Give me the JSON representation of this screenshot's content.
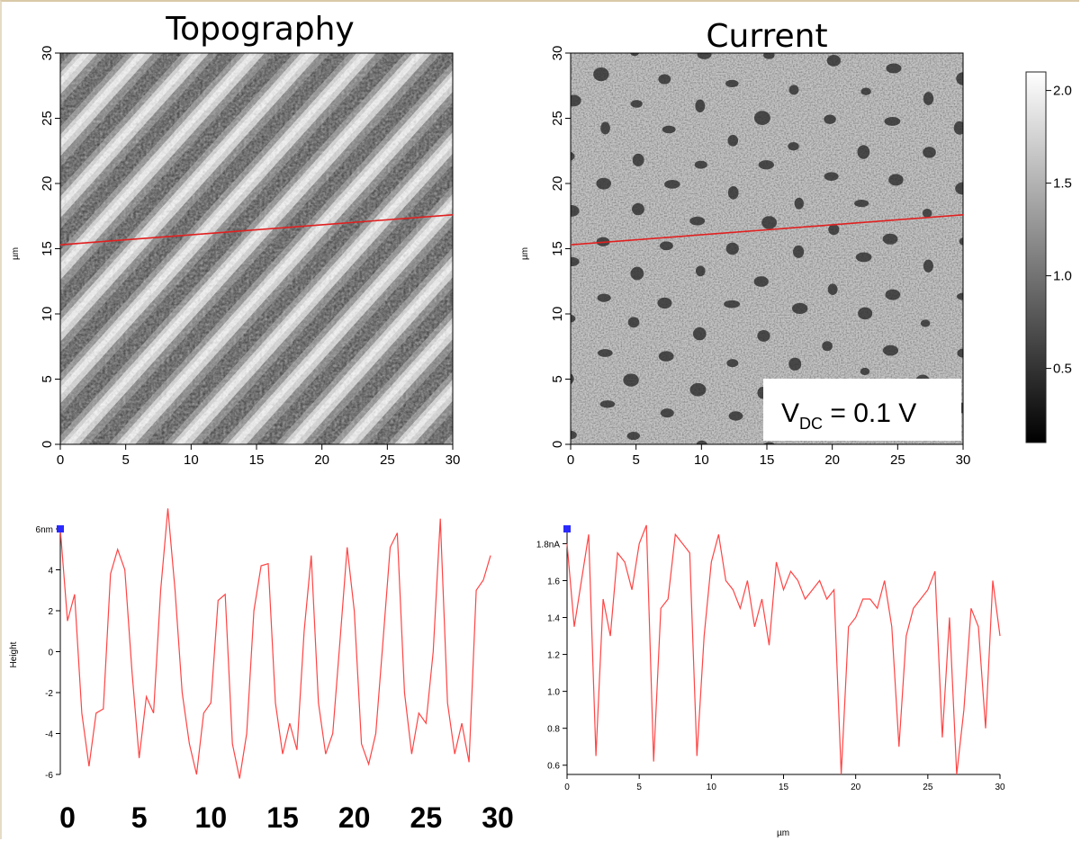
{
  "chart_data": [
    {
      "type": "heatmap",
      "title": "Topography",
      "xlabel": "",
      "ylabel": "µm",
      "xlim": [
        0,
        30
      ],
      "ylim": [
        0,
        30
      ],
      "x_ticks": [
        "0",
        "5",
        "10",
        "15",
        "20",
        "25",
        "30"
      ],
      "y_ticks": [
        "0",
        "5",
        "10",
        "15",
        "20",
        "25",
        "30"
      ],
      "pattern": "diagonal stripes, grayscale",
      "profile_line": {
        "x": [
          0,
          30
        ],
        "y": [
          15.3,
          17.6
        ]
      },
      "line_color": "#e02020"
    },
    {
      "type": "heatmap",
      "title": "Current",
      "xlabel": "",
      "ylabel": "µm",
      "xlim": [
        0,
        30
      ],
      "ylim": [
        0,
        30
      ],
      "x_ticks": [
        "0",
        "5",
        "10",
        "15",
        "20",
        "25",
        "30"
      ],
      "y_ticks": [
        "0",
        "5",
        "10",
        "15",
        "20",
        "25",
        "30"
      ],
      "pattern": "noisy with dark diagonal spots",
      "annotation": {
        "main": "V",
        "sub": "DC",
        "rest": " = 0.1 V"
      },
      "profile_line": {
        "x": [
          0,
          30
        ],
        "y": [
          15.3,
          17.6
        ]
      },
      "colorbar": {
        "ticks": [
          "0.5",
          "1.0",
          "1.5",
          "2.0"
        ],
        "values": [
          0.5,
          1.0,
          1.5,
          2.0
        ],
        "range": [
          0.1,
          2.1
        ]
      },
      "line_color": "#e02020"
    },
    {
      "type": "line",
      "title": "",
      "xlabel": "",
      "ylabel": "Height",
      "xlim": [
        0,
        30
      ],
      "ylim": [
        -6,
        6
      ],
      "x_ticks": [
        "0",
        "5",
        "10",
        "15",
        "20",
        "25",
        "30"
      ],
      "y_ticks": [
        "-6",
        "-4",
        "-2",
        "0",
        "2",
        "4",
        "6nm"
      ],
      "series": [
        {
          "x": [
            0,
            0.5,
            1,
            1.5,
            2,
            2.5,
            3,
            3.5,
            4,
            4.5,
            5,
            5.5,
            6,
            6.5,
            7,
            7.5,
            8,
            8.5,
            9,
            9.5,
            10,
            10.5,
            11,
            11.5,
            12,
            12.5,
            13,
            13.5,
            14,
            14.5,
            15,
            15.5,
            16,
            16.5,
            17,
            17.5,
            18,
            18.5,
            19,
            19.5,
            20,
            20.5,
            21,
            21.5,
            22,
            22.5,
            23,
            23.5,
            24,
            24.5,
            25,
            25.5,
            26,
            26.5,
            27,
            27.5,
            28,
            28.5,
            29,
            29.5,
            30
          ],
          "y": [
            6,
            1.5,
            2.8,
            -3,
            -5.6,
            -3,
            -2.8,
            3.8,
            5,
            4,
            -1,
            -5.2,
            -2.2,
            -3,
            3,
            7,
            3,
            -2,
            -4.5,
            -6,
            -3,
            -2.5,
            2.5,
            2.8,
            -4.5,
            -6.2,
            -4,
            2,
            4.2,
            4.3,
            -2.5,
            -5,
            -3.5,
            -4.8,
            1,
            4.7,
            -2.5,
            -5,
            -4,
            0.5,
            5.1,
            2,
            -4.5,
            -5.5,
            -4,
            0.5,
            5.1,
            5.8,
            -2,
            -5,
            -3,
            -3.5,
            0,
            6.5,
            -2.5,
            -5,
            -3.5,
            -5.4,
            3,
            3.5,
            4.7
          ]
        }
      ],
      "line_color": "#ff4444"
    },
    {
      "type": "line",
      "title": "",
      "xlabel": "µm",
      "ylabel": "",
      "xlim": [
        0,
        30
      ],
      "ylim": [
        0.55,
        1.88
      ],
      "x_ticks": [
        "0",
        "5",
        "10",
        "15",
        "20",
        "25",
        "30"
      ],
      "y_ticks": [
        "0.6",
        "0.8",
        "1.0",
        "1.2",
        "1.4",
        "1.6",
        "1.8nA"
      ],
      "series": [
        {
          "x": [
            0,
            0.5,
            1,
            1.5,
            2,
            2.5,
            3,
            3.5,
            4,
            4.5,
            5,
            5.5,
            6,
            6.5,
            7,
            7.5,
            8,
            8.5,
            9,
            9.5,
            10,
            10.5,
            11,
            11.5,
            12,
            12.5,
            13,
            13.5,
            14,
            14.5,
            15,
            15.5,
            16,
            16.5,
            17,
            17.5,
            18,
            18.5,
            19,
            19.5,
            20,
            20.5,
            21,
            21.5,
            22,
            22.5,
            23,
            23.5,
            24,
            24.5,
            25,
            25.5,
            26,
            26.5,
            27,
            27.5,
            28,
            28.5,
            29,
            29.5,
            30
          ],
          "y": [
            1.8,
            1.35,
            1.6,
            1.85,
            0.65,
            1.5,
            1.3,
            1.75,
            1.7,
            1.55,
            1.8,
            1.9,
            0.62,
            1.45,
            1.5,
            1.85,
            1.8,
            1.75,
            0.65,
            1.3,
            1.7,
            1.85,
            1.6,
            1.55,
            1.45,
            1.6,
            1.35,
            1.5,
            1.25,
            1.7,
            1.55,
            1.65,
            1.6,
            1.5,
            1.55,
            1.6,
            1.5,
            1.55,
            0.55,
            1.35,
            1.4,
            1.5,
            1.5,
            1.45,
            1.6,
            1.35,
            0.7,
            1.3,
            1.45,
            1.5,
            1.55,
            1.65,
            0.75,
            1.4,
            0.55,
            0.9,
            1.45,
            1.35,
            0.8,
            1.6,
            1.3
          ]
        }
      ],
      "line_color": "#ff4444"
    }
  ]
}
